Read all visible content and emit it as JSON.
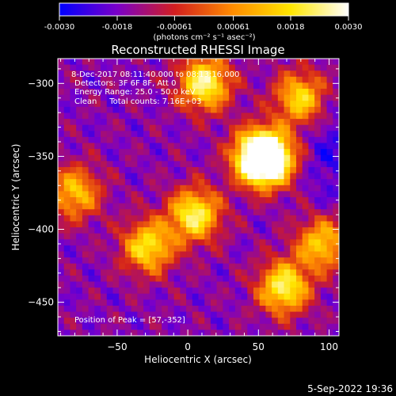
{
  "chart_data": {
    "type": "heatmap",
    "title": "Reconstructed RHESSI Image",
    "xlabel": "Heliocentric X (arcsec)",
    "ylabel": "Heliocentric Y (arcsec)",
    "xlim": [
      -92,
      107
    ],
    "ylim": [
      -473,
      -283
    ],
    "x_ticks": [
      -50,
      0,
      50,
      100
    ],
    "y_ticks": [
      -300,
      -350,
      -400,
      -450
    ],
    "colorbar": {
      "range": [
        -0.003,
        0.003
      ],
      "tick_values": [
        -0.003,
        -0.0018,
        -0.00061,
        0.00061,
        0.0018,
        0.003
      ],
      "tick_labels": [
        "-0.0030",
        "-0.0018",
        "-0.00061",
        "0.00061",
        "0.0018",
        "0.0030"
      ],
      "unit_label": "(photons cm⁻² s⁻¹ asec⁻²)",
      "colors": [
        "#0000ff",
        "#7a00c8",
        "#d21e1e",
        "#ff8c00",
        "#ffe600",
        "#ffffff"
      ]
    },
    "annotations": [
      "8-Dec-2017 08:11:40.000 to 08:13:16.000",
      "Detectors: 3F 6F 8F, Att 0",
      "Energy Range: 25.0 - 50.0 keV",
      "Clean     Total counts: 7.16E+03"
    ],
    "peak_label": "Position of Peak = [57,-352]",
    "peak": {
      "x": 57,
      "y": -352,
      "value": 0.003
    },
    "sources": [
      {
        "x": 12,
        "y": -300,
        "value": 0.0026
      },
      {
        "x": 50,
        "y": -350,
        "value": 0.0028
      },
      {
        "x": 5,
        "y": -390,
        "value": 0.0024
      },
      {
        "x": -28,
        "y": -412,
        "value": 0.002
      },
      {
        "x": 80,
        "y": -310,
        "value": 0.0018
      },
      {
        "x": 68,
        "y": -440,
        "value": 0.0024
      },
      {
        "x": 95,
        "y": -410,
        "value": 0.0016
      },
      {
        "x": -80,
        "y": -375,
        "value": 0.0014
      }
    ]
  },
  "footer": {
    "date": "5-Sep-2022 19:36"
  }
}
